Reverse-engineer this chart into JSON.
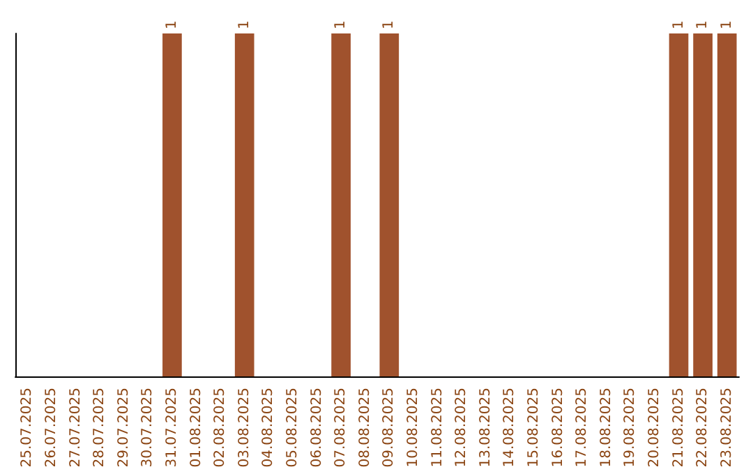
{
  "chart_data": {
    "type": "bar",
    "categories": [
      "25.07.2025",
      "26.07.2025",
      "27.07.2025",
      "28.07.2025",
      "29.07.2025",
      "30.07.2025",
      "31.07.2025",
      "01.08.2025",
      "02.08.2025",
      "03.08.2025",
      "04.08.2025",
      "05.08.2025",
      "06.08.2025",
      "07.08.2025",
      "08.08.2025",
      "09.08.2025",
      "10.08.2025",
      "11.08.2025",
      "12.08.2025",
      "13.08.2025",
      "14.08.2025",
      "15.08.2025",
      "16.08.2025",
      "17.08.2025",
      "18.08.2025",
      "19.08.2025",
      "20.08.2025",
      "21.08.2025",
      "22.08.2025",
      "23.08.2025"
    ],
    "values": [
      0,
      0,
      0,
      0,
      0,
      0,
      1,
      0,
      0,
      1,
      0,
      0,
      0,
      1,
      0,
      1,
      0,
      0,
      0,
      0,
      0,
      0,
      0,
      0,
      0,
      0,
      0,
      1,
      1,
      1
    ],
    "value_labels": [
      null,
      null,
      null,
      null,
      null,
      null,
      "1",
      null,
      null,
      "1",
      null,
      null,
      null,
      "1",
      null,
      "1",
      null,
      null,
      null,
      null,
      null,
      null,
      null,
      null,
      null,
      null,
      null,
      "1",
      "1",
      "1"
    ],
    "color": "#a0522d",
    "tick_labels": "x"
  }
}
